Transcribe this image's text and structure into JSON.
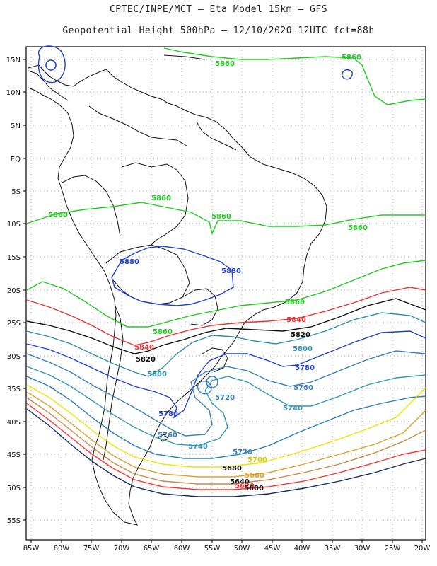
{
  "header": {
    "line1": "CPTEC/INPE/MCT –  Eta Model 15km – GFS",
    "line2": "Geopotential Height 500hPa – 12/10/2020 12UTC fct=88h"
  },
  "axes": {
    "lon_ticks": [
      "85W",
      "80W",
      "75W",
      "70W",
      "65W",
      "60W",
      "55W",
      "50W",
      "45W",
      "40W",
      "35W",
      "30W",
      "25W",
      "20W"
    ],
    "lat_ticks": [
      "15N",
      "10N",
      "5N",
      "EQ",
      "5S",
      "10S",
      "15S",
      "20S",
      "25S",
      "30S",
      "35S",
      "40S",
      "45S",
      "50S",
      "55S"
    ],
    "grid": "dotted"
  },
  "map": {
    "region": "South America",
    "field": "500hPa geopotential height",
    "units": "m",
    "colors": {
      "5880": "#1f3fd6",
      "5860": "#22cc22",
      "5840": "#ee3333",
      "5820": "#111111",
      "5800": "#2f8fb0",
      "5780": "#2244cc",
      "5760": "#3a7fbf",
      "5740": "#3399bb",
      "5720": "#2f7fb8",
      "5700": "#e8e800",
      "5680": "#e0a030",
      "5660": "#cc8844",
      "5640": "#ff3333",
      "5600": "#152a6a"
    },
    "labels": [
      {
        "text": "5860",
        "color": "#22cc22"
      },
      {
        "text": "5860",
        "color": "#22cc22"
      },
      {
        "text": "5860",
        "color": "#22cc22"
      },
      {
        "text": "5860",
        "color": "#22cc22"
      },
      {
        "text": "5860",
        "color": "#22cc22"
      },
      {
        "text": "5860",
        "color": "#22cc22"
      },
      {
        "text": "5860",
        "color": "#22cc22"
      },
      {
        "text": "5880",
        "color": "#1f3fd6"
      },
      {
        "text": "5880",
        "color": "#1f3fd6"
      },
      {
        "text": "5860",
        "color": "#22cc22"
      },
      {
        "text": "5840",
        "color": "#ee3333"
      },
      {
        "text": "5840",
        "color": "#ee3333"
      },
      {
        "text": "5820",
        "color": "#111111"
      },
      {
        "text": "5820",
        "color": "#111111"
      },
      {
        "text": "5800",
        "color": "#2f8fb0"
      },
      {
        "text": "5800",
        "color": "#2f8fb0"
      },
      {
        "text": "5780",
        "color": "#2244cc"
      },
      {
        "text": "5780",
        "color": "#2244cc"
      },
      {
        "text": "5760",
        "color": "#3a7fbf"
      },
      {
        "text": "5760",
        "color": "#3a7fbf"
      },
      {
        "text": "5740",
        "color": "#3399bb"
      },
      {
        "text": "5740",
        "color": "#3399bb"
      },
      {
        "text": "5720",
        "color": "#2f7fb8"
      },
      {
        "text": "5720",
        "color": "#2f7fb8"
      },
      {
        "text": "5700",
        "color": "#d8c800"
      },
      {
        "text": "5680",
        "color": "#111111"
      },
      {
        "text": "5660",
        "color": "#e0a030"
      },
      {
        "text": "5640",
        "color": "#111111"
      },
      {
        "text": "5620",
        "color": "#ff3333"
      },
      {
        "text": "5600",
        "color": "#111111"
      }
    ]
  }
}
